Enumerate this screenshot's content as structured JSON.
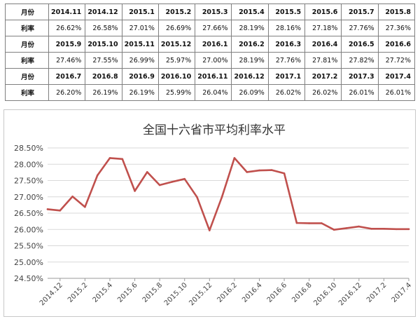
{
  "table": {
    "row_labels": {
      "month": "月份",
      "rate": "利率"
    },
    "blocks": [
      {
        "months": [
          "2014.11",
          "2014.12",
          "2015.1",
          "2015.2",
          "2015.3",
          "2015.4",
          "2015.5",
          "2015.6",
          "2015.7",
          "2015.8"
        ],
        "rates": [
          "26.62%",
          "26.58%",
          "27.01%",
          "26.69%",
          "27.66%",
          "28.19%",
          "28.16%",
          "27.18%",
          "27.76%",
          "27.36%"
        ]
      },
      {
        "months": [
          "2015.9",
          "2015.10",
          "2015.11",
          "2015.12",
          "2016.1",
          "2016.2",
          "2016.3",
          "2016.4",
          "2016.5",
          "2016.6"
        ],
        "rates": [
          "27.46%",
          "27.55%",
          "26.99%",
          "25.97%",
          "27.00%",
          "28.19%",
          "27.76%",
          "27.81%",
          "27.82%",
          "27.72%"
        ]
      },
      {
        "months": [
          "2016.7",
          "2016.8",
          "2016.9",
          "2016.10",
          "2016.11",
          "2016.12",
          "2017.1",
          "2017.2",
          "2017.3",
          "2017.4"
        ],
        "rates": [
          "26.20%",
          "26.19%",
          "26.19%",
          "25.99%",
          "26.04%",
          "26.09%",
          "26.02%",
          "26.02%",
          "26.01%",
          "26.01%"
        ]
      }
    ]
  },
  "chart_data": {
    "type": "line",
    "title": "全国十六省市平均利率水平",
    "xlabel": "",
    "ylabel": "",
    "x": [
      "2014.11",
      "2014.12",
      "2015.1",
      "2015.2",
      "2015.3",
      "2015.4",
      "2015.5",
      "2015.6",
      "2015.7",
      "2015.8",
      "2015.9",
      "2015.10",
      "2015.11",
      "2015.12",
      "2016.1",
      "2016.2",
      "2016.3",
      "2016.4",
      "2016.5",
      "2016.6",
      "2016.7",
      "2016.8",
      "2016.9",
      "2016.10",
      "2016.11",
      "2016.12",
      "2017.1",
      "2017.2",
      "2017.3",
      "2017.4"
    ],
    "x_tick_labels": [
      "2014.12",
      "2015.2",
      "2015.4",
      "2015.6",
      "2015.8",
      "2015.10",
      "2015.12",
      "2016.2",
      "2016.4",
      "2016.6",
      "2016.8",
      "2016.10",
      "2016.12",
      "2017.2",
      "2017.4"
    ],
    "series": [
      {
        "values": [
          26.62,
          26.58,
          27.01,
          26.69,
          27.66,
          28.19,
          28.16,
          27.18,
          27.76,
          27.36,
          27.46,
          27.55,
          26.99,
          25.97,
          27.0,
          28.19,
          27.76,
          27.81,
          27.82,
          27.72,
          26.2,
          26.19,
          26.19,
          25.99,
          26.04,
          26.09,
          26.02,
          26.02,
          26.01,
          26.01
        ],
        "color": "#c0504d"
      }
    ],
    "ylim": [
      24.5,
      28.5
    ],
    "y_ticks": [
      "24.50%",
      "25.00%",
      "25.50%",
      "26.00%",
      "26.50%",
      "27.00%",
      "27.50%",
      "28.00%",
      "28.50%"
    ],
    "grid": true,
    "legend": "none"
  }
}
